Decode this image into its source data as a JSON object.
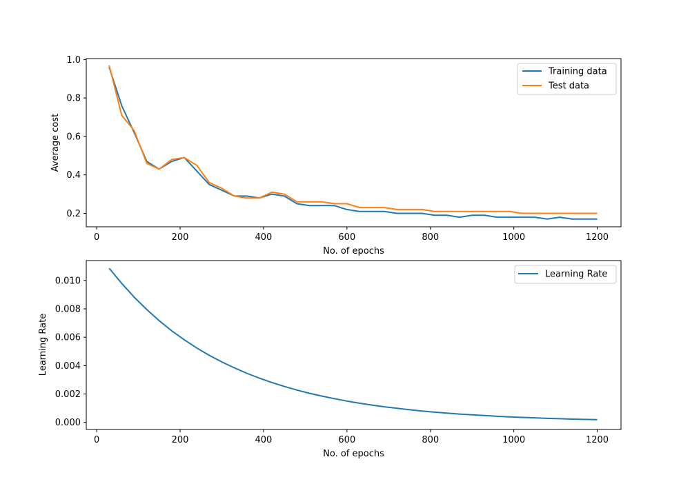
{
  "chart_data": [
    {
      "type": "line",
      "title": "",
      "xlabel": "No. of epochs",
      "ylabel": "Average cost",
      "xlim": [
        -25,
        1257
      ],
      "ylim": [
        0.13,
        1.005
      ],
      "xticks": [
        0,
        200,
        400,
        600,
        800,
        1000,
        1200
      ],
      "xtick_labels": [
        "0",
        "200",
        "400",
        "600",
        "800",
        "1000",
        "1200"
      ],
      "yticks": [
        0.2,
        0.4,
        0.6,
        0.8,
        1.0
      ],
      "ytick_labels": [
        "0.2",
        "0.4",
        "0.6",
        "0.8",
        "1.0"
      ],
      "legend_position": "top-right",
      "grid": false,
      "x": [
        30,
        60,
        90,
        120,
        150,
        180,
        210,
        240,
        270,
        300,
        330,
        360,
        390,
        420,
        450,
        480,
        510,
        540,
        570,
        600,
        630,
        660,
        690,
        720,
        750,
        780,
        810,
        840,
        870,
        900,
        930,
        960,
        990,
        1020,
        1050,
        1080,
        1110,
        1140,
        1170,
        1200
      ],
      "series": [
        {
          "name": "Training data",
          "color": "#1f77b4",
          "values": [
            0.96,
            0.76,
            0.62,
            0.47,
            0.43,
            0.47,
            0.49,
            0.42,
            0.35,
            0.32,
            0.29,
            0.29,
            0.28,
            0.3,
            0.29,
            0.25,
            0.24,
            0.24,
            0.24,
            0.22,
            0.21,
            0.21,
            0.21,
            0.2,
            0.2,
            0.2,
            0.19,
            0.19,
            0.18,
            0.19,
            0.19,
            0.18,
            0.18,
            0.18,
            0.18,
            0.17,
            0.18,
            0.17,
            0.17,
            0.17
          ]
        },
        {
          "name": "Test data",
          "color": "#ff7f0e",
          "values": [
            0.97,
            0.71,
            0.63,
            0.46,
            0.43,
            0.48,
            0.49,
            0.45,
            0.36,
            0.33,
            0.29,
            0.28,
            0.28,
            0.31,
            0.3,
            0.26,
            0.26,
            0.26,
            0.25,
            0.25,
            0.23,
            0.23,
            0.23,
            0.22,
            0.22,
            0.22,
            0.21,
            0.21,
            0.21,
            0.21,
            0.21,
            0.21,
            0.21,
            0.2,
            0.2,
            0.2,
            0.2,
            0.2,
            0.2,
            0.2
          ]
        }
      ]
    },
    {
      "type": "line",
      "title": "",
      "xlabel": "No. of epochs",
      "ylabel": "Learning Rate",
      "xlim": [
        -25,
        1257
      ],
      "ylim": [
        -0.0005,
        0.0114
      ],
      "xticks": [
        0,
        200,
        400,
        600,
        800,
        1000,
        1200
      ],
      "xtick_labels": [
        "0",
        "200",
        "400",
        "600",
        "800",
        "1000",
        "1200"
      ],
      "yticks": [
        0.0,
        0.002,
        0.004,
        0.006,
        0.008,
        0.01
      ],
      "ytick_labels": [
        "0.000",
        "0.002",
        "0.004",
        "0.006",
        "0.008",
        "0.010"
      ],
      "legend_position": "top-right",
      "grid": false,
      "x": [
        30,
        60,
        90,
        120,
        150,
        180,
        210,
        240,
        270,
        300,
        330,
        360,
        390,
        420,
        450,
        480,
        510,
        540,
        570,
        600,
        630,
        660,
        690,
        720,
        750,
        780,
        810,
        840,
        870,
        900,
        930,
        960,
        990,
        1020,
        1050,
        1080,
        1110,
        1140,
        1170,
        1200
      ],
      "series": [
        {
          "name": "Learning Rate",
          "color": "#1f77b4",
          "values": [
            0.01086,
            0.00979,
            0.00882,
            0.00795,
            0.00716,
            0.00645,
            0.00582,
            0.00524,
            0.00472,
            0.00426,
            0.00384,
            0.00346,
            0.00312,
            0.00281,
            0.00253,
            0.00228,
            0.00205,
            0.00185,
            0.00167,
            0.0015,
            0.00135,
            0.00122,
            0.0011,
            0.00099,
            0.00089,
            0.0008,
            0.00072,
            0.00065,
            0.00059,
            0.00053,
            0.00048,
            0.00043,
            0.00039,
            0.00035,
            0.00032,
            0.00028,
            0.00026,
            0.00023,
            0.00021,
            0.00019
          ]
        }
      ]
    }
  ]
}
